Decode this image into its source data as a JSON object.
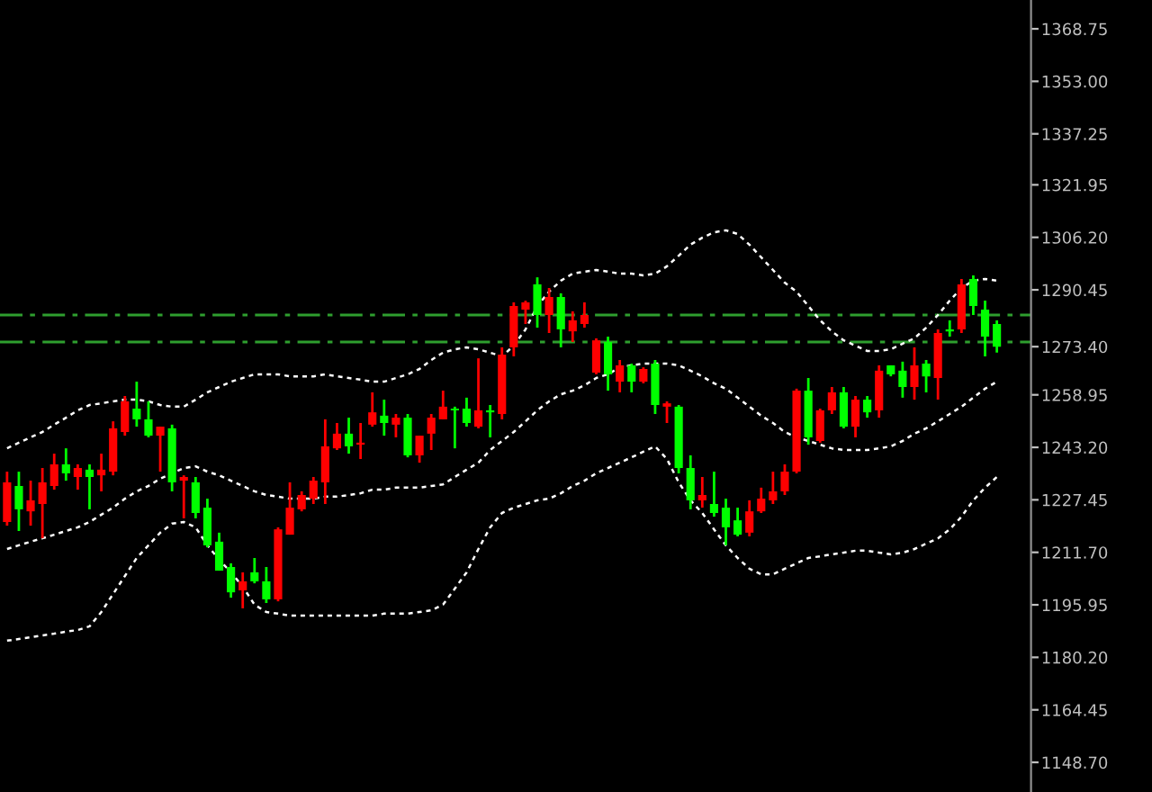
{
  "chart_data": {
    "type": "candlestick",
    "categories": [
      null,
      null,
      null,
      null,
      null,
      null,
      null,
      null,
      null,
      null,
      null,
      null,
      null,
      null,
      null,
      null,
      null,
      null,
      null,
      null,
      null,
      null,
      null,
      null,
      null,
      null,
      null,
      null,
      null,
      null,
      null,
      null,
      null,
      null,
      null,
      null,
      null,
      null,
      null,
      null,
      null,
      null,
      null,
      null,
      null,
      null,
      null,
      null,
      null,
      null,
      null,
      null,
      null,
      null,
      null,
      null,
      null,
      null,
      null,
      null,
      null,
      null,
      null,
      null,
      null,
      null,
      null,
      null,
      null,
      null,
      null,
      null,
      null,
      null,
      null,
      null,
      null,
      null,
      null,
      null,
      null,
      null,
      null,
      null,
      null
    ],
    "colors": [
      "#ff0000",
      "#00ff00",
      "#ff0000",
      "#ff0000",
      "#ff0000",
      "#00ff00",
      "#ff0000",
      "#00ff00",
      "#ff0000",
      "#ff0000",
      "#ff0000",
      "#00ff00",
      "#00ff00",
      "#ff0000",
      "#00ff00",
      "#ff0000",
      "#00ff00",
      "#00ff00",
      "#00ff00",
      "#00ff00",
      "#ff0000",
      "#00ff00",
      "#00ff00",
      "#ff0000",
      "#ff0000",
      "#ff0000",
      "#ff0000",
      "#ff0000",
      "#ff0000",
      "#00ff00",
      "#ff0000",
      "#ff0000",
      "#00ff00",
      "#ff0000",
      "#00ff00",
      "#ff0000",
      "#ff0000",
      "#ff0000",
      "#00ff00",
      "#00ff00",
      "#ff0000",
      "#00ff00",
      "#ff0000",
      "#ff0000",
      "#ff0000",
      "#00ff00",
      "#ff0000",
      "#00ff00",
      "#ff0000",
      "#ff0000",
      "#ff0000",
      "#00ff00",
      "#ff0000",
      "#00ff00",
      "#ff0000",
      "#00ff00",
      "#ff0000",
      "#00ff00",
      "#00ff00",
      "#ff0000",
      "#00ff00",
      "#00ff00",
      "#00ff00",
      "#ff0000",
      "#ff0000",
      "#ff0000",
      "#ff0000",
      "#ff0000",
      "#00ff00",
      "#ff0000",
      "#ff0000",
      "#00ff00",
      "#ff0000",
      "#00ff00",
      "#ff0000",
      "#00ff00",
      "#00ff00",
      "#ff0000",
      "#00ff00",
      "#ff0000",
      "#00ff00",
      "#ff0000",
      "#00ff00",
      "#00ff00",
      "#00ff00"
    ],
    "ohlc": [
      [
        1220.8,
        1235.9,
        1219.7,
        1232.7
      ],
      [
        1231.6,
        1235.9,
        1218.1,
        1224.6
      ],
      [
        1224.0,
        1233.2,
        1219.7,
        1227.3
      ],
      [
        1226.2,
        1237.0,
        1215.9,
        1232.7
      ],
      [
        1231.6,
        1241.3,
        1230.5,
        1238.1
      ],
      [
        1238.1,
        1242.9,
        1233.2,
        1235.4
      ],
      [
        1234.3,
        1238.1,
        1230.5,
        1237.0
      ],
      [
        1236.5,
        1238.1,
        1224.6,
        1234.3
      ],
      [
        1234.8,
        1241.3,
        1230.0,
        1236.5
      ],
      [
        1235.9,
        1251.0,
        1234.8,
        1248.9
      ],
      [
        1247.8,
        1258.6,
        1246.7,
        1257.0
      ],
      [
        1254.8,
        1262.9,
        1249.4,
        1251.6
      ],
      [
        1251.6,
        1257.0,
        1246.2,
        1246.7
      ],
      [
        1246.7,
        1249.4,
        1235.9,
        1249.4
      ],
      [
        1248.9,
        1250.0,
        1230.0,
        1232.7
      ],
      [
        1233.2,
        1234.8,
        1221.9,
        1234.3
      ],
      [
        1232.7,
        1234.3,
        1221.9,
        1223.5
      ],
      [
        1225.1,
        1227.8,
        1213.2,
        1213.8
      ],
      [
        1214.9,
        1217.6,
        1206.2,
        1206.2
      ],
      [
        1207.3,
        1208.4,
        1198.1,
        1199.7
      ],
      [
        1200.3,
        1205.7,
        1194.9,
        1203.0
      ],
      [
        1205.7,
        1210.0,
        1202.4,
        1203.0
      ],
      [
        1203.0,
        1207.3,
        1196.5,
        1197.6
      ],
      [
        1197.6,
        1219.2,
        1197.0,
        1218.6
      ],
      [
        1217.0,
        1232.7,
        1217.0,
        1225.1
      ],
      [
        1224.6,
        1230.0,
        1224.0,
        1228.9
      ],
      [
        1227.8,
        1234.3,
        1226.2,
        1233.2
      ],
      [
        1232.7,
        1251.6,
        1226.2,
        1243.5
      ],
      [
        1242.9,
        1250.5,
        1242.4,
        1247.3
      ],
      [
        1247.3,
        1252.1,
        1241.3,
        1243.5
      ],
      [
        1244.0,
        1250.5,
        1239.7,
        1244.6
      ],
      [
        1250.0,
        1259.7,
        1249.4,
        1253.7
      ],
      [
        1252.7,
        1257.5,
        1246.7,
        1250.5
      ],
      [
        1250.0,
        1253.2,
        1246.2,
        1252.1
      ],
      [
        1252.1,
        1253.2,
        1240.2,
        1240.8
      ],
      [
        1240.8,
        1246.7,
        1238.6,
        1246.7
      ],
      [
        1247.3,
        1253.2,
        1242.4,
        1252.1
      ],
      [
        1251.6,
        1260.2,
        1251.6,
        1255.4
      ],
      [
        1254.8,
        1255.4,
        1242.9,
        1254.3
      ],
      [
        1254.8,
        1258.1,
        1249.4,
        1250.5
      ],
      [
        1249.4,
        1269.9,
        1248.9,
        1254.3
      ],
      [
        1254.3,
        1255.9,
        1246.2,
        1253.7
      ],
      [
        1253.2,
        1273.2,
        1251.6,
        1271.0
      ],
      [
        1273.2,
        1286.7,
        1270.5,
        1285.6
      ],
      [
        1284.5,
        1287.2,
        1280.2,
        1286.7
      ],
      [
        1292.1,
        1294.2,
        1279.1,
        1282.9
      ],
      [
        1282.9,
        1291.0,
        1277.5,
        1288.3
      ],
      [
        1288.3,
        1289.4,
        1273.2,
        1278.6
      ],
      [
        1278.0,
        1284.0,
        1274.8,
        1281.3
      ],
      [
        1280.2,
        1286.7,
        1279.1,
        1282.9
      ],
      [
        1265.6,
        1275.9,
        1265.1,
        1275.3
      ],
      [
        1274.8,
        1276.4,
        1260.2,
        1265.1
      ],
      [
        1262.9,
        1269.4,
        1259.7,
        1267.8
      ],
      [
        1267.8,
        1268.3,
        1259.7,
        1262.9
      ],
      [
        1262.9,
        1267.2,
        1262.4,
        1266.7
      ],
      [
        1268.3,
        1269.4,
        1253.2,
        1255.9
      ],
      [
        1255.4,
        1257.0,
        1250.5,
        1256.4
      ],
      [
        1255.4,
        1255.9,
        1235.4,
        1237.0
      ],
      [
        1237.0,
        1240.8,
        1224.6,
        1227.3
      ],
      [
        1227.3,
        1234.3,
        1225.1,
        1228.9
      ],
      [
        1226.2,
        1235.9,
        1222.4,
        1223.5
      ],
      [
        1225.1,
        1227.8,
        1213.8,
        1219.2
      ],
      [
        1221.3,
        1225.1,
        1216.5,
        1217.0
      ],
      [
        1217.6,
        1227.3,
        1216.5,
        1224.0
      ],
      [
        1224.0,
        1231.1,
        1223.5,
        1227.8
      ],
      [
        1227.3,
        1235.9,
        1226.2,
        1230.0
      ],
      [
        1230.0,
        1238.1,
        1228.9,
        1235.9
      ],
      [
        1235.9,
        1260.8,
        1235.4,
        1260.2
      ],
      [
        1260.2,
        1264.0,
        1244.0,
        1246.2
      ],
      [
        1245.1,
        1254.8,
        1244.6,
        1254.3
      ],
      [
        1254.3,
        1261.3,
        1253.2,
        1259.7
      ],
      [
        1259.7,
        1261.3,
        1248.9,
        1249.4
      ],
      [
        1249.4,
        1258.6,
        1246.2,
        1257.5
      ],
      [
        1257.5,
        1258.6,
        1252.1,
        1253.7
      ],
      [
        1254.3,
        1267.8,
        1252.1,
        1266.2
      ],
      [
        1267.8,
        1267.8,
        1264.5,
        1265.1
      ],
      [
        1266.2,
        1268.9,
        1258.1,
        1261.3
      ],
      [
        1261.3,
        1273.2,
        1257.5,
        1267.8
      ],
      [
        1268.3,
        1269.4,
        1259.7,
        1264.5
      ],
      [
        1264.0,
        1278.6,
        1257.5,
        1277.5
      ],
      [
        1278.6,
        1281.3,
        1276.4,
        1278.0
      ],
      [
        1278.6,
        1293.7,
        1277.5,
        1292.1
      ],
      [
        1293.7,
        1294.8,
        1282.9,
        1285.6
      ],
      [
        1284.5,
        1287.2,
        1270.5,
        1276.4
      ],
      [
        1280.2,
        1281.3,
        1271.6,
        1273.4
      ]
    ],
    "series": [
      {
        "type": "line",
        "color": "#ffffff",
        "line_style": "dotted",
        "values": [
          1242.9,
          1244.6,
          1246.2,
          1247.8,
          1250.0,
          1252.1,
          1254.3,
          1255.9,
          1256.4,
          1257.0,
          1257.5,
          1257.5,
          1257.0,
          1255.9,
          1255.4,
          1255.4,
          1257.5,
          1259.7,
          1261.3,
          1262.9,
          1264.0,
          1265.1,
          1265.1,
          1265.1,
          1264.5,
          1264.5,
          1264.5,
          1265.1,
          1264.5,
          1264.0,
          1263.5,
          1262.9,
          1262.9,
          1264.0,
          1265.1,
          1266.7,
          1269.4,
          1271.6,
          1272.6,
          1273.2,
          1272.6,
          1271.6,
          1270.5,
          1273.7,
          1278.6,
          1285.6,
          1289.9,
          1293.2,
          1295.3,
          1295.9,
          1296.4,
          1295.9,
          1295.3,
          1295.3,
          1294.8,
          1295.3,
          1297.5,
          1300.7,
          1304.0,
          1306.1,
          1307.7,
          1308.3,
          1307.2,
          1304.0,
          1300.2,
          1296.4,
          1292.6,
          1289.9,
          1285.6,
          1281.3,
          1278.0,
          1275.3,
          1273.7,
          1272.1,
          1272.1,
          1272.6,
          1274.3,
          1275.9,
          1279.1,
          1282.9,
          1287.2,
          1291.0,
          1293.2,
          1293.7,
          1293.2
        ]
      },
      {
        "type": "line",
        "color": "#ffffff",
        "line_style": "dotted",
        "values": [
          1212.7,
          1213.8,
          1214.9,
          1215.9,
          1217.0,
          1218.1,
          1219.2,
          1220.8,
          1223.0,
          1225.1,
          1227.8,
          1230.0,
          1231.6,
          1233.8,
          1235.4,
          1237.0,
          1237.5,
          1235.9,
          1234.8,
          1233.2,
          1231.6,
          1230.0,
          1228.9,
          1228.4,
          1227.8,
          1227.8,
          1227.8,
          1228.4,
          1228.4,
          1228.9,
          1229.4,
          1230.5,
          1230.5,
          1231.1,
          1231.1,
          1231.1,
          1231.6,
          1232.1,
          1234.3,
          1236.5,
          1238.6,
          1242.4,
          1245.1,
          1247.8,
          1251.0,
          1254.3,
          1257.0,
          1259.1,
          1260.2,
          1261.8,
          1264.0,
          1265.1,
          1267.2,
          1267.8,
          1268.3,
          1268.3,
          1268.3,
          1267.8,
          1266.2,
          1264.5,
          1262.4,
          1260.8,
          1258.1,
          1255.4,
          1252.7,
          1250.5,
          1247.8,
          1246.2,
          1245.1,
          1244.0,
          1242.9,
          1242.4,
          1242.4,
          1242.4,
          1242.9,
          1243.5,
          1245.1,
          1247.3,
          1248.9,
          1251.0,
          1253.2,
          1255.4,
          1258.1,
          1260.8,
          1262.9
        ]
      },
      {
        "type": "line",
        "color": "#ffffff",
        "line_style": "dotted",
        "values": [
          1185.2,
          1185.7,
          1186.2,
          1186.8,
          1187.3,
          1187.9,
          1188.4,
          1189.5,
          1193.8,
          1199.2,
          1204.6,
          1210.0,
          1213.8,
          1217.6,
          1220.3,
          1220.8,
          1219.2,
          1213.8,
          1209.5,
          1205.7,
          1201.4,
          1196.0,
          1193.8,
          1193.3,
          1192.7,
          1192.7,
          1192.7,
          1192.7,
          1192.7,
          1192.7,
          1192.7,
          1192.7,
          1193.3,
          1193.3,
          1193.3,
          1193.8,
          1194.3,
          1196.0,
          1200.8,
          1205.7,
          1212.7,
          1219.2,
          1223.5,
          1225.1,
          1226.2,
          1227.3,
          1227.8,
          1229.4,
          1231.6,
          1233.2,
          1235.4,
          1237.0,
          1238.6,
          1240.2,
          1241.9,
          1243.5,
          1239.7,
          1232.7,
          1227.3,
          1223.5,
          1218.6,
          1213.8,
          1210.0,
          1206.8,
          1205.1,
          1205.1,
          1206.8,
          1208.4,
          1210.0,
          1210.5,
          1211.1,
          1211.6,
          1212.2,
          1212.2,
          1211.6,
          1211.1,
          1211.6,
          1212.7,
          1214.3,
          1215.9,
          1218.6,
          1222.4,
          1227.3,
          1231.1,
          1234.3
        ]
      }
    ],
    "ref_lines": [
      {
        "axis": "y",
        "value": 1282.9,
        "color": "#2e9e2e",
        "line_style": "dashed"
      },
      {
        "axis": "y",
        "value": 1274.8,
        "color": "#2e9e2e",
        "line_style": "dashed"
      }
    ],
    "ylim": [
      1139.8,
      1377.4
    ],
    "yticks": [
      {
        "value": 1368.75,
        "label": "1368.75"
      },
      {
        "value": 1353.0,
        "label": "1353.00"
      },
      {
        "value": 1337.25,
        "label": "1337.25"
      },
      {
        "value": 1321.95,
        "label": "1321.95"
      },
      {
        "value": 1306.2,
        "label": "1306.20"
      },
      {
        "value": 1290.45,
        "label": "1290.45"
      },
      {
        "value": 1273.4,
        "label": "1273.40"
      },
      {
        "value": 1258.95,
        "label": "1258.95"
      },
      {
        "value": 1243.2,
        "label": "1243.20"
      },
      {
        "value": 1227.45,
        "label": "1227.45"
      },
      {
        "value": 1211.7,
        "label": "1211.70"
      },
      {
        "value": 1195.95,
        "label": "1195.95"
      },
      {
        "value": 1180.2,
        "label": "1180.20"
      },
      {
        "value": 1164.45,
        "label": "1164.45"
      },
      {
        "value": 1148.7,
        "label": "1148.70"
      }
    ],
    "tick_labels": "y",
    "grid": false,
    "legend": false
  }
}
